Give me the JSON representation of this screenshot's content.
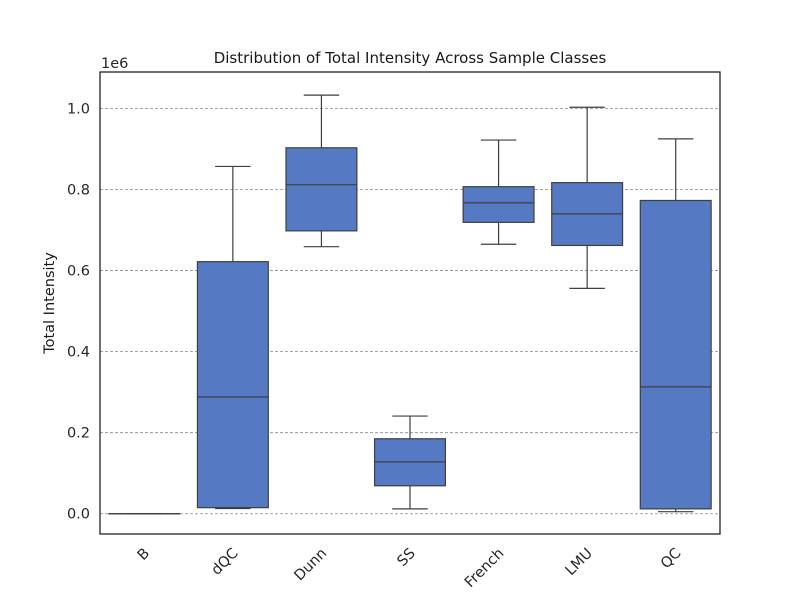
{
  "chart_data": {
    "type": "box",
    "title": "Distribution of Total Intensity Across Sample Classes",
    "xlabel": "",
    "ylabel": "Total Intensity",
    "y_offset_label": "1e6",
    "ylim": [
      -0.05,
      1.09
    ],
    "yticks": [
      0.0,
      0.2,
      0.4,
      0.6,
      0.8,
      1.0
    ],
    "ytick_labels": [
      "0.0",
      "0.2",
      "0.4",
      "0.6",
      "0.8",
      "1.0"
    ],
    "grid": "horizontal dashed",
    "box_color": "#5579c2",
    "line_color": "#3f3f3f",
    "categories": [
      "B",
      "dQC",
      "Dunn",
      "SS",
      "French",
      "LMU",
      "QC"
    ],
    "boxes": [
      {
        "category": "B",
        "whisker_low": 0.0,
        "q1": 0.0,
        "median": 0.0,
        "q3": 0.0,
        "whisker_high": 0.0
      },
      {
        "category": "dQC",
        "whisker_low": 0.013,
        "q1": 0.015,
        "median": 0.288,
        "q3": 0.622,
        "whisker_high": 0.857
      },
      {
        "category": "Dunn",
        "whisker_low": 0.659,
        "q1": 0.698,
        "median": 0.812,
        "q3": 0.903,
        "whisker_high": 1.033
      },
      {
        "category": "SS",
        "whisker_low": 0.012,
        "q1": 0.069,
        "median": 0.128,
        "q3": 0.185,
        "whisker_high": 0.241
      },
      {
        "category": "French",
        "whisker_low": 0.665,
        "q1": 0.719,
        "median": 0.767,
        "q3": 0.807,
        "whisker_high": 0.922
      },
      {
        "category": "LMU",
        "whisker_low": 0.556,
        "q1": 0.662,
        "median": 0.74,
        "q3": 0.817,
        "whisker_high": 1.003
      },
      {
        "category": "QC",
        "whisker_low": 0.005,
        "q1": 0.012,
        "median": 0.313,
        "q3": 0.773,
        "whisker_high": 0.925
      }
    ]
  }
}
